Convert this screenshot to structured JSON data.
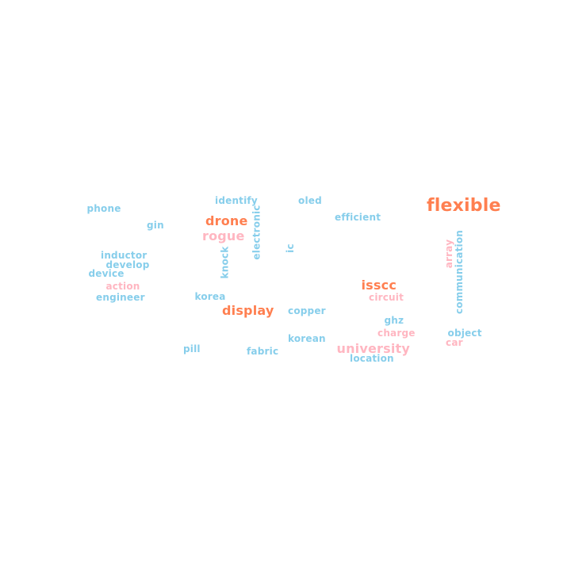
{
  "palette": {
    "blue": "#87ceeb",
    "pink": "#ffb6c1",
    "orange": "#ff7f50"
  },
  "words": [
    {
      "text": "flexible",
      "color": "orange",
      "vertical": false
    },
    {
      "text": "drone",
      "color": "orange",
      "vertical": false
    },
    {
      "text": "display",
      "color": "orange",
      "vertical": false
    },
    {
      "text": "isscc",
      "color": "orange",
      "vertical": false
    },
    {
      "text": "university",
      "color": "pink",
      "vertical": false
    },
    {
      "text": "rogue",
      "color": "pink",
      "vertical": false
    },
    {
      "text": "action",
      "color": "pink",
      "vertical": false
    },
    {
      "text": "circuit",
      "color": "pink",
      "vertical": false
    },
    {
      "text": "charge",
      "color": "pink",
      "vertical": false
    },
    {
      "text": "car",
      "color": "pink",
      "vertical": false
    },
    {
      "text": "array",
      "color": "pink",
      "vertical": true
    },
    {
      "text": "phone",
      "color": "blue",
      "vertical": false
    },
    {
      "text": "identify",
      "color": "blue",
      "vertical": false
    },
    {
      "text": "oled",
      "color": "blue",
      "vertical": false
    },
    {
      "text": "efficient",
      "color": "blue",
      "vertical": false
    },
    {
      "text": "gin",
      "color": "blue",
      "vertical": false
    },
    {
      "text": "inductor",
      "color": "blue",
      "vertical": false
    },
    {
      "text": "develop",
      "color": "blue",
      "vertical": false
    },
    {
      "text": "device",
      "color": "blue",
      "vertical": false
    },
    {
      "text": "engineer",
      "color": "blue",
      "vertical": false
    },
    {
      "text": "korea",
      "color": "blue",
      "vertical": false
    },
    {
      "text": "copper",
      "color": "blue",
      "vertical": false
    },
    {
      "text": "ghz",
      "color": "blue",
      "vertical": false
    },
    {
      "text": "object",
      "color": "blue",
      "vertical": false
    },
    {
      "text": "korean",
      "color": "blue",
      "vertical": false
    },
    {
      "text": "pill",
      "color": "blue",
      "vertical": false
    },
    {
      "text": "fabric",
      "color": "blue",
      "vertical": false
    },
    {
      "text": "location",
      "color": "blue",
      "vertical": false
    },
    {
      "text": "electronic",
      "color": "blue",
      "vertical": true
    },
    {
      "text": "knock",
      "color": "blue",
      "vertical": true
    },
    {
      "text": "ic",
      "color": "blue",
      "vertical": true
    },
    {
      "text": "communication",
      "color": "blue",
      "vertical": true
    }
  ]
}
